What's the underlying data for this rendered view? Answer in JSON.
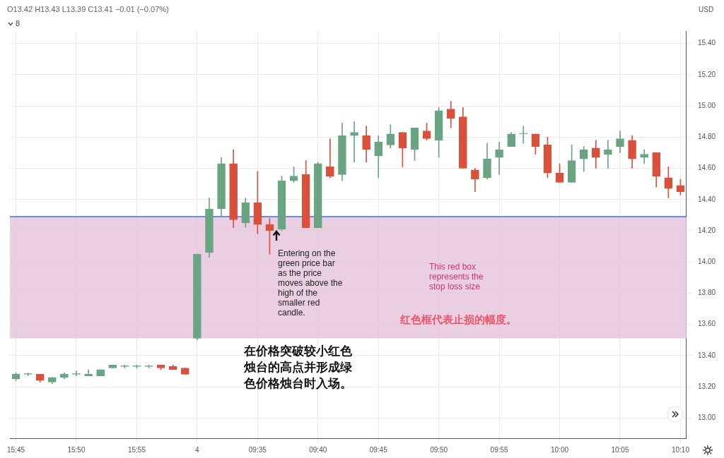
{
  "chart_data": {
    "type": "candlestick",
    "annotations": [
      "O13.42 H13.43 L13.39 C13.41 −0.01 (−0.07%)",
      "8",
      "Entering on the green price bar as the price moves above the high of the smaller red candle.",
      "This red box represents the stop loss size",
      "红色框代表止损的幅度。",
      "在价格突破较小红色烛台的高点并形成绿色价格烛台时入场。"
    ],
    "ylabel": "USD",
    "categories": [
      "15:45",
      null,
      null,
      null,
      null,
      "15:50",
      null,
      null,
      null,
      null,
      "15:55",
      null,
      null,
      null,
      null,
      "4",
      null,
      null,
      null,
      null,
      "09:35",
      null,
      null,
      null,
      null,
      "09:40",
      null,
      null,
      null,
      null,
      "09:45",
      null,
      null,
      null,
      null,
      "09:50",
      null,
      null,
      null,
      null,
      "09:55",
      null,
      null,
      null,
      null,
      "10:00",
      null,
      null,
      null,
      null,
      "10:05",
      null,
      null,
      null,
      null,
      "10:10"
    ],
    "ohlc": [
      [
        13.25,
        13.29,
        13.24,
        13.28
      ],
      [
        13.28,
        13.29,
        13.27,
        13.28
      ],
      [
        13.28,
        13.28,
        13.23,
        13.24
      ],
      [
        13.23,
        13.26,
        13.22,
        13.26
      ],
      [
        13.26,
        13.29,
        13.25,
        13.28
      ],
      [
        13.28,
        13.3,
        13.27,
        13.28
      ],
      [
        13.27,
        13.31,
        13.27,
        13.28
      ],
      [
        13.27,
        13.31,
        13.27,
        13.31
      ],
      [
        13.32,
        13.34,
        13.32,
        13.34
      ],
      [
        13.33,
        13.34,
        13.32,
        13.33
      ],
      [
        13.33,
        13.34,
        13.32,
        13.33
      ],
      [
        13.33,
        13.34,
        13.32,
        13.33
      ],
      [
        13.34,
        13.34,
        13.31,
        13.32
      ],
      [
        13.33,
        13.34,
        13.31,
        13.31
      ],
      [
        13.32,
        13.32,
        13.28,
        13.28
      ],
      [
        13.51,
        14.05,
        13.5,
        14.05
      ],
      [
        14.06,
        14.41,
        14.03,
        14.34
      ],
      [
        14.34,
        14.67,
        14.29,
        14.63
      ],
      [
        14.63,
        14.72,
        14.22,
        14.27
      ],
      [
        14.25,
        14.41,
        14.22,
        14.38
      ],
      [
        14.38,
        14.58,
        14.18,
        14.24
      ],
      [
        14.24,
        14.28,
        14.05,
        14.2
      ],
      [
        14.21,
        14.55,
        14.2,
        14.52
      ],
      [
        14.52,
        14.61,
        14.51,
        14.55
      ],
      [
        14.56,
        14.65,
        14.22,
        14.22
      ],
      [
        14.22,
        14.64,
        14.22,
        14.63
      ],
      [
        14.61,
        14.79,
        14.54,
        14.55
      ],
      [
        14.56,
        14.89,
        14.52,
        14.81
      ],
      [
        14.81,
        14.9,
        14.64,
        14.83
      ],
      [
        14.81,
        14.87,
        14.64,
        14.72
      ],
      [
        14.68,
        14.81,
        14.54,
        14.77
      ],
      [
        14.75,
        14.88,
        14.73,
        14.82
      ],
      [
        14.83,
        14.83,
        14.61,
        14.73
      ],
      [
        14.72,
        14.86,
        14.65,
        14.86
      ],
      [
        14.84,
        14.89,
        14.78,
        14.79
      ],
      [
        14.78,
        14.99,
        14.67,
        14.97
      ],
      [
        14.98,
        15.03,
        14.86,
        14.92
      ],
      [
        14.93,
        14.99,
        14.6,
        14.6
      ],
      [
        14.59,
        14.6,
        14.45,
        14.53
      ],
      [
        14.54,
        14.76,
        14.53,
        14.66
      ],
      [
        14.67,
        14.77,
        14.56,
        14.72
      ],
      [
        14.74,
        14.83,
        14.74,
        14.82
      ],
      [
        14.82,
        14.87,
        14.76,
        14.82
      ],
      [
        14.82,
        14.82,
        14.69,
        14.74
      ],
      [
        14.75,
        14.8,
        14.54,
        14.57
      ],
      [
        14.57,
        14.63,
        14.51,
        14.51
      ],
      [
        14.51,
        14.75,
        14.51,
        14.65
      ],
      [
        14.66,
        14.74,
        14.58,
        14.72
      ],
      [
        14.73,
        14.78,
        14.6,
        14.67
      ],
      [
        14.69,
        14.78,
        14.6,
        14.72
      ],
      [
        14.74,
        14.84,
        14.7,
        14.79
      ],
      [
        14.78,
        14.81,
        14.6,
        14.66
      ],
      [
        14.67,
        14.72,
        14.63,
        14.69
      ],
      [
        14.7,
        14.7,
        14.48,
        14.55
      ],
      [
        14.54,
        14.61,
        14.41,
        14.47
      ],
      [
        14.49,
        14.53,
        14.43,
        14.45
      ]
    ],
    "colors": [
      "#6aa583",
      "#6aa583",
      "#d9513c",
      "#6aa583",
      "#6aa583",
      "#6aa583",
      "#6aa583",
      "#6aa583",
      "#6aa583",
      "#6aa583",
      "#6aa583",
      "#6aa583",
      "#d9513c",
      "#d9513c",
      "#d9513c",
      "#6aa583",
      "#6aa583",
      "#6aa583",
      "#d9513c",
      "#6aa583",
      "#d9513c",
      "#d9513c",
      "#6aa583",
      "#6aa583",
      "#d9513c",
      "#6aa583",
      "#d9513c",
      "#6aa583",
      "#6aa583",
      "#d9513c",
      "#6aa583",
      "#6aa583",
      "#d9513c",
      "#6aa583",
      "#d9513c",
      "#6aa583",
      "#d9513c",
      "#d9513c",
      "#d9513c",
      "#6aa583",
      "#6aa583",
      "#6aa583",
      "#6aa583",
      "#d9513c",
      "#d9513c",
      "#d9513c",
      "#6aa583",
      "#6aa583",
      "#d9513c",
      "#6aa583",
      "#6aa583",
      "#d9513c",
      "#6aa583",
      "#d9513c",
      "#d9513c",
      "#d9513c"
    ],
    "ylim": [
      12.87,
      15.48
    ],
    "yticks": [
      {
        "value": 13,
        "label": "13.00"
      },
      {
        "value": 13.2,
        "label": "13.20"
      },
      {
        "value": 13.4,
        "label": "13.40"
      },
      {
        "value": 13.6,
        "label": "13.60"
      },
      {
        "value": 13.8,
        "label": "13.80"
      },
      {
        "value": 14,
        "label": "14.00"
      },
      {
        "value": 14.2,
        "label": "14.20"
      },
      {
        "value": 14.4,
        "label": "14.40"
      },
      {
        "value": 14.6,
        "label": "14.60"
      },
      {
        "value": 14.8,
        "label": "14.80"
      },
      {
        "value": 15,
        "label": "15.00"
      },
      {
        "value": 15.2,
        "label": "15.20"
      },
      {
        "value": 15.4,
        "label": "15.40"
      }
    ],
    "grid": true,
    "bands": [
      {
        "axis": "y",
        "from": 13.51,
        "to": 14.29,
        "color": "#e3c3da"
      }
    ],
    "ref_lines": [
      {
        "axis": "y",
        "value": 14.29,
        "color": "#3b6fd4"
      }
    ]
  }
}
